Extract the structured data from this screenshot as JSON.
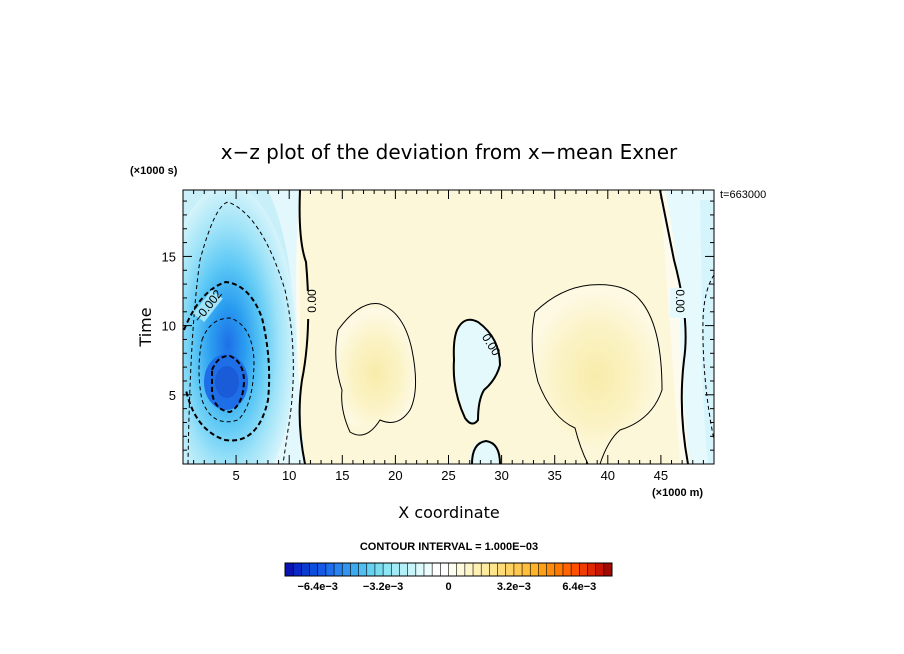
{
  "chart_data": {
    "type": "contour",
    "title": "x−z plot of the deviation from x−mean Exner",
    "xlabel": "X coordinate",
    "ylabel": "Time",
    "x_unit": "(×1000 m)",
    "y_unit": "(×1000 s)",
    "time_stamp": "t=663000",
    "xlim": [
      0,
      50
    ],
    "ylim": [
      0,
      19.8
    ],
    "x_ticks": [
      5,
      10,
      15,
      20,
      25,
      30,
      35,
      40,
      45
    ],
    "x_tick_labels": [
      "5",
      "10",
      "15",
      "20",
      "25",
      "30",
      "35",
      "40",
      "45"
    ],
    "y_ticks": [
      5,
      10,
      15
    ],
    "y_tick_labels": [
      "5",
      "10",
      "15"
    ],
    "contour_interval_text": "CONTOUR INTERVAL = 1.000E−03",
    "contour_labels": [
      "−0.002",
      "0.00",
      "0.00",
      "0.00"
    ],
    "colorbar": {
      "min": -0.008,
      "max": 0.008,
      "tick_values": [
        -0.0064,
        -0.0032,
        0,
        0.0032,
        0.0064
      ],
      "tick_labels": [
        "−6.4e−3",
        "−3.2e−3",
        "0",
        "3.2e−3",
        "6.4e−3"
      ]
    },
    "features": [
      {
        "name": "negative-anomaly-left",
        "center_x": 4,
        "center_y": 6,
        "min_value": -0.0065
      },
      {
        "name": "positive-anomaly-center-left",
        "center_x": 18,
        "center_y": 7,
        "max_value": 0.0012
      },
      {
        "name": "negative-anomaly-center",
        "center_x": 28,
        "center_y": 7,
        "min_value": -0.0006
      },
      {
        "name": "positive-anomaly-right",
        "center_x": 39,
        "center_y": 8,
        "max_value": 0.0014
      },
      {
        "name": "negative-anomaly-right-edge",
        "center_x": 49,
        "center_y": 10,
        "min_value": -0.0008
      }
    ]
  }
}
